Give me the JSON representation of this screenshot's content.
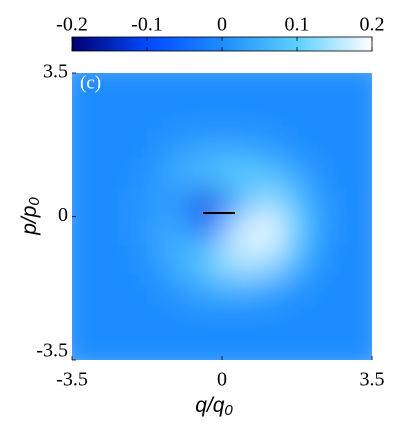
{
  "chart_data": {
    "type": "heatmap",
    "panel_label": "(c)",
    "xlabel": "q/q",
    "xlabel_sub": "0",
    "ylabel": "p/p",
    "ylabel_sub": "0",
    "xlim": [
      -3.5,
      3.5
    ],
    "ylim": [
      -3.5,
      3.5
    ],
    "xticks": [
      -3.5,
      0,
      3.5
    ],
    "yticks": [
      -3.5,
      0,
      3.5
    ],
    "clim": [
      -0.2,
      0.2
    ],
    "cticks": [
      -0.2,
      -0.1,
      0,
      0.1,
      0.2
    ],
    "colormap": [
      "#00006e",
      "#0048ff",
      "#1e8cff",
      "#5cd0ff",
      "#ffffff"
    ],
    "x": [
      -3.15,
      -2.45,
      -1.75,
      -1.05,
      -0.35,
      0.35,
      1.05,
      1.75,
      2.45,
      3.15
    ],
    "y": [
      3.15,
      2.45,
      1.75,
      1.05,
      0.35,
      -0.35,
      -1.05,
      -1.75,
      -2.45,
      -3.15
    ],
    "z": [
      [
        0,
        0,
        0,
        0,
        0,
        0,
        0,
        0,
        0,
        0
      ],
      [
        0,
        0,
        0,
        0,
        0,
        0,
        0,
        0,
        0,
        0
      ],
      [
        0,
        0,
        0,
        0.02,
        0.03,
        0.03,
        0.02,
        0,
        0,
        0
      ],
      [
        0,
        0,
        0.01,
        0.05,
        0.08,
        0.1,
        0.08,
        0.04,
        0,
        0
      ],
      [
        0,
        0,
        0.02,
        0.02,
        -0.12,
        0.04,
        0.14,
        0.08,
        0.01,
        0
      ],
      [
        0,
        0,
        0.02,
        0.05,
        -0.04,
        0.16,
        0.2,
        0.1,
        0.01,
        0
      ],
      [
        0,
        0,
        0.01,
        0.06,
        0.1,
        0.16,
        0.15,
        0.07,
        0,
        0
      ],
      [
        0,
        0,
        0,
        0.02,
        0.05,
        0.06,
        0.04,
        0.01,
        0,
        0
      ],
      [
        0,
        0,
        0,
        0,
        0,
        0,
        0,
        0,
        0,
        0
      ],
      [
        0,
        0,
        0,
        0,
        0,
        0,
        0,
        0,
        0,
        0
      ]
    ]
  }
}
